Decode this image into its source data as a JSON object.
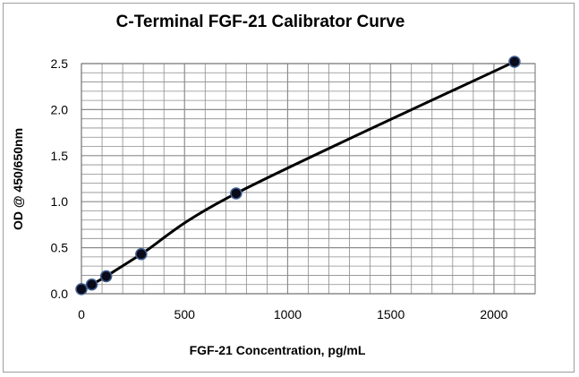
{
  "chart_data": {
    "type": "scatter",
    "title": "C-Terminal FGF-21 Calibrator Curve",
    "xlabel": "FGF-21 Concentration, pg/mL",
    "ylabel": "OD @ 450/650nm",
    "xlim": [
      0,
      2200
    ],
    "ylim": [
      0,
      2.5
    ],
    "xticks": [
      0,
      500,
      1000,
      1500,
      2000
    ],
    "yticks": [
      0.0,
      0.5,
      1.0,
      1.5,
      2.0,
      2.5
    ],
    "xtick_labels": [
      "0",
      "500",
      "1000",
      "1500",
      "2000"
    ],
    "ytick_labels": [
      "0.0",
      "0.5",
      "1.0",
      "1.5",
      "2.0",
      "2.5"
    ],
    "grid": true,
    "legend": "none",
    "series": [
      {
        "x": [
          0,
          50,
          120,
          290,
          750,
          2100
        ],
        "y": [
          0.05,
          0.1,
          0.19,
          0.43,
          1.09,
          2.52
        ]
      }
    ],
    "colors": {
      "line": "#000000",
      "marker_fill": "#0a0a1a",
      "marker_edge": "#3f5f8f",
      "grid": "#8c8c8c"
    }
  }
}
